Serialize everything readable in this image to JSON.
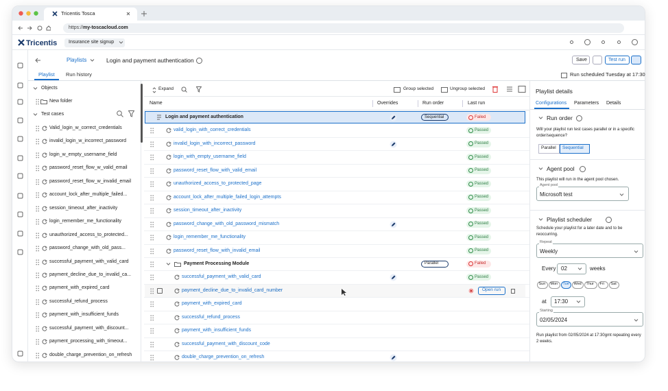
{
  "browser": {
    "tab_title": "Tricentis Tosca",
    "url_prefix": "https://",
    "url_host": "my-toscacloud.com"
  },
  "app": {
    "brand": "Tricentis",
    "project": "Insurance site signup"
  },
  "breadcrumb": {
    "section": "Playlists",
    "title": "Login and payment authentication"
  },
  "actions": {
    "save": "Save",
    "test_run": "Test run"
  },
  "tabs": [
    "Playlist",
    "Run history"
  ],
  "schedule_note": "Run scheduled Tuesday at 17:30",
  "tree": {
    "objects": "Objects",
    "new_folder": "New folder",
    "test_cases": "Test cases",
    "items": [
      "Valid_login_w_correct_credentials",
      "invalid_login_w_incorrect_password",
      "login_w_empty_username_field",
      "password_reset_flow_w_valid_email",
      "password_reset_flow_w_invalid_email",
      "account_lock_after_multiple_failed...",
      "session_timeout_after_inactivity",
      "login_remember_me_functionality",
      "unauthorized_access_to_protected...",
      "password_change_with_old_pass...",
      "successful_payment_with_valid_card",
      "payment_decline_due_to_invalid_ca...",
      "payment_with_expired_card",
      "successful_refund_process",
      "payment_with_insufficient_funds",
      "successful_payment_with_discount...",
      "payment_processing_with_timeout...",
      "double_charge_prevention_on_refresh"
    ]
  },
  "toolbar": {
    "expand": "Expand",
    "group": "Group selected",
    "ungroup": "Ungroup selected"
  },
  "table": {
    "headers": [
      "Name",
      "Overrides",
      "Run order",
      "Last run"
    ],
    "root": {
      "name": "Login and payment authentication",
      "override": true,
      "run_order": "Sequential",
      "last_run": "Failed"
    },
    "tests": [
      {
        "name": "valid_login_with_correct_credentials",
        "override": false,
        "last_run": "Passed"
      },
      {
        "name": "invalid_login_with_incorrect_password",
        "override": true,
        "last_run": "Passed"
      },
      {
        "name": "login_with_empty_username_field",
        "override": false,
        "last_run": "Passed"
      },
      {
        "name": "password_reset_flow_with_valid_email",
        "override": false,
        "last_run": "Passed"
      },
      {
        "name": "unauthorized_access_to_protected_page",
        "override": false,
        "last_run": "Passed"
      },
      {
        "name": "account_lock_after_multiple_failed_login_attempts",
        "override": false,
        "last_run": "Passed"
      },
      {
        "name": "session_timeout_after_inactivity",
        "override": false,
        "last_run": "Passed"
      },
      {
        "name": "password_change_with_old_password_mismatch",
        "override": true,
        "last_run": "Passed"
      },
      {
        "name": "login_remember_me_functionality",
        "override": false,
        "last_run": "Passed"
      },
      {
        "name": "password_reset_flow_with_invalid_email",
        "override": false,
        "last_run": "Passed"
      }
    ],
    "folder": {
      "name": "Payment Processing Module",
      "override": false,
      "run_order": "Parallel",
      "last_run": "Failed",
      "tests": [
        {
          "name": "successful_payment_with_valid_card",
          "override": true,
          "last_run": "Passed"
        },
        {
          "name": "payment_decline_due_to_invalid_card_number",
          "override": false,
          "action": "Open run"
        },
        {
          "name": "payment_with_expired_card",
          "override": false
        },
        {
          "name": "successful_refund_process",
          "override": false
        },
        {
          "name": "payment_with_insufficient_funds",
          "override": false
        },
        {
          "name": "successful_payment_with_discount_code",
          "override": false
        },
        {
          "name": "double_charge_prevention_on_refresh",
          "override": true
        }
      ]
    }
  },
  "details": {
    "title": "Playlist details",
    "tabs": [
      "Configurations",
      "Parameters",
      "Details"
    ],
    "run_order": {
      "title": "Run order",
      "description": "Will your playlist run test cases parallel or in a specific order/sequence?",
      "options": [
        "Parallel",
        "Sequential"
      ]
    },
    "agent_pool": {
      "title": "Agent pool",
      "description": "This playlist will run in the agent pool chosen.",
      "label": "Agent pool",
      "value": "Microsoft test"
    },
    "scheduler": {
      "title": "Playlist scheduler",
      "description": "Schedule your playlist for a later date and to be reoccurring.",
      "repeat_label": "Repeat",
      "repeat": "Weekly",
      "every": "Every",
      "interval": "02",
      "unit": "weeks",
      "days": [
        "Sun",
        "Mon",
        "Tue",
        "Wed",
        "Thur",
        "Fri",
        "Sat"
      ],
      "at": "at",
      "time": "17:30",
      "starting_label": "Starting",
      "starting": "02/05/2024",
      "summary": "Run playlist from 02/05/2024 at 17:30gmt repeating every 2 weeks."
    }
  }
}
